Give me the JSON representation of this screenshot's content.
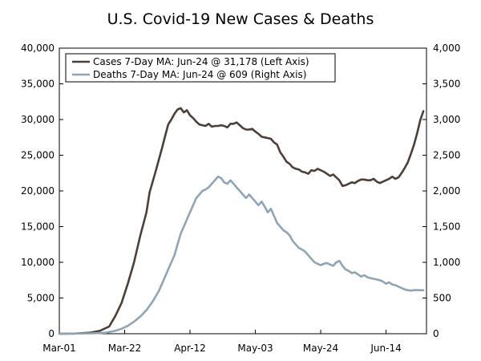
{
  "chart_data": {
    "type": "line",
    "title": "U.S. Covid-19 New Cases & Deaths",
    "x_labels": [
      "Mar-01",
      "Mar-22",
      "Apr-12",
      "May-03",
      "May-24",
      "Jun-14"
    ],
    "x_label_days": [
      0,
      21,
      42,
      63,
      84,
      105
    ],
    "x_range": [
      0,
      118
    ],
    "left_axis": {
      "range": [
        0,
        40000
      ],
      "ticks": [
        "0",
        "5,000",
        "10,000",
        "15,000",
        "20,000",
        "25,000",
        "30,000",
        "35,000",
        "40,000"
      ]
    },
    "right_axis": {
      "range": [
        0,
        4000
      ],
      "ticks": [
        "0",
        "500",
        "1,000",
        "1,500",
        "2,000",
        "2,500",
        "3,000",
        "3,500",
        "4,000"
      ]
    },
    "series": [
      {
        "name": "Cases 7-Day MA: Jun-24 @ 31,178 (Left Axis)",
        "axis": "left",
        "color": "#4d3f36",
        "points": [
          [
            0,
            0
          ],
          [
            5,
            20
          ],
          [
            10,
            150
          ],
          [
            13,
            400
          ],
          [
            16,
            1000
          ],
          [
            18,
            2500
          ],
          [
            20,
            4300
          ],
          [
            22,
            7000
          ],
          [
            24,
            10000
          ],
          [
            26,
            13700
          ],
          [
            28,
            17000
          ],
          [
            29,
            19800
          ],
          [
            31,
            22800
          ],
          [
            33,
            26000
          ],
          [
            34,
            27700
          ],
          [
            35,
            29300
          ],
          [
            36,
            30000
          ],
          [
            37,
            30800
          ],
          [
            38,
            31400
          ],
          [
            39,
            31600
          ],
          [
            40,
            31000
          ],
          [
            41,
            31300
          ],
          [
            42,
            30600
          ],
          [
            43,
            30200
          ],
          [
            44,
            29700
          ],
          [
            45,
            29300
          ],
          [
            46,
            29200
          ],
          [
            47,
            29100
          ],
          [
            48,
            29400
          ],
          [
            49,
            29000
          ],
          [
            50,
            29100
          ],
          [
            51,
            29100
          ],
          [
            52,
            29200
          ],
          [
            53,
            29100
          ],
          [
            54,
            28900
          ],
          [
            55,
            29400
          ],
          [
            56,
            29400
          ],
          [
            57,
            29600
          ],
          [
            58,
            29200
          ],
          [
            59,
            28800
          ],
          [
            60,
            28600
          ],
          [
            61,
            28600
          ],
          [
            62,
            28700
          ],
          [
            63,
            28300
          ],
          [
            64,
            28000
          ],
          [
            65,
            27600
          ],
          [
            66,
            27500
          ],
          [
            67,
            27400
          ],
          [
            68,
            27300
          ],
          [
            69,
            26800
          ],
          [
            70,
            26500
          ],
          [
            71,
            25400
          ],
          [
            72,
            24800
          ],
          [
            73,
            24100
          ],
          [
            74,
            23800
          ],
          [
            75,
            23300
          ],
          [
            76,
            23100
          ],
          [
            77,
            23000
          ],
          [
            78,
            22700
          ],
          [
            79,
            22600
          ],
          [
            80,
            22400
          ],
          [
            81,
            22900
          ],
          [
            82,
            22800
          ],
          [
            83,
            23100
          ],
          [
            84,
            22900
          ],
          [
            85,
            22700
          ],
          [
            86,
            22400
          ],
          [
            87,
            22100
          ],
          [
            88,
            22300
          ],
          [
            89,
            21900
          ],
          [
            90,
            21500
          ],
          [
            91,
            20700
          ],
          [
            92,
            20800
          ],
          [
            93,
            21000
          ],
          [
            94,
            21200
          ],
          [
            95,
            21100
          ],
          [
            96,
            21400
          ],
          [
            97,
            21600
          ],
          [
            98,
            21600
          ],
          [
            99,
            21500
          ],
          [
            100,
            21500
          ],
          [
            101,
            21700
          ],
          [
            102,
            21300
          ],
          [
            103,
            21100
          ],
          [
            104,
            21300
          ],
          [
            105,
            21500
          ],
          [
            106,
            21700
          ],
          [
            107,
            22000
          ],
          [
            108,
            21700
          ],
          [
            109,
            21900
          ],
          [
            110,
            22500
          ],
          [
            111,
            23200
          ],
          [
            112,
            24000
          ],
          [
            113,
            25200
          ],
          [
            114,
            26500
          ],
          [
            115,
            28100
          ],
          [
            116,
            29900
          ],
          [
            117,
            31178
          ]
        ]
      },
      {
        "name": "Deaths 7-Day MA: Jun-24 @ 609 (Right Axis)",
        "axis": "right",
        "color": "#8ea5b6",
        "points": [
          [
            0,
            0
          ],
          [
            10,
            5
          ],
          [
            15,
            15
          ],
          [
            18,
            40
          ],
          [
            20,
            70
          ],
          [
            22,
            110
          ],
          [
            24,
            170
          ],
          [
            26,
            240
          ],
          [
            28,
            330
          ],
          [
            30,
            450
          ],
          [
            32,
            600
          ],
          [
            33,
            700
          ],
          [
            34,
            800
          ],
          [
            35,
            900
          ],
          [
            36,
            1000
          ],
          [
            37,
            1100
          ],
          [
            38,
            1250
          ],
          [
            39,
            1400
          ],
          [
            40,
            1500
          ],
          [
            41,
            1600
          ],
          [
            42,
            1700
          ],
          [
            43,
            1800
          ],
          [
            44,
            1900
          ],
          [
            45,
            1950
          ],
          [
            46,
            2000
          ],
          [
            47,
            2020
          ],
          [
            48,
            2050
          ],
          [
            49,
            2100
          ],
          [
            50,
            2150
          ],
          [
            51,
            2200
          ],
          [
            52,
            2180
          ],
          [
            53,
            2120
          ],
          [
            54,
            2100
          ],
          [
            55,
            2150
          ],
          [
            56,
            2100
          ],
          [
            57,
            2050
          ],
          [
            58,
            2000
          ],
          [
            59,
            1950
          ],
          [
            60,
            1900
          ],
          [
            61,
            1950
          ],
          [
            62,
            1900
          ],
          [
            63,
            1850
          ],
          [
            64,
            1800
          ],
          [
            65,
            1850
          ],
          [
            66,
            1780
          ],
          [
            67,
            1700
          ],
          [
            68,
            1750
          ],
          [
            69,
            1650
          ],
          [
            70,
            1550
          ],
          [
            71,
            1500
          ],
          [
            72,
            1450
          ],
          [
            73,
            1420
          ],
          [
            74,
            1380
          ],
          [
            75,
            1300
          ],
          [
            76,
            1250
          ],
          [
            77,
            1200
          ],
          [
            78,
            1180
          ],
          [
            79,
            1150
          ],
          [
            80,
            1100
          ],
          [
            81,
            1050
          ],
          [
            82,
            1000
          ],
          [
            83,
            980
          ],
          [
            84,
            960
          ],
          [
            85,
            980
          ],
          [
            86,
            990
          ],
          [
            87,
            970
          ],
          [
            88,
            950
          ],
          [
            89,
            1000
          ],
          [
            90,
            1020
          ],
          [
            91,
            950
          ],
          [
            92,
            900
          ],
          [
            93,
            880
          ],
          [
            94,
            850
          ],
          [
            95,
            860
          ],
          [
            96,
            830
          ],
          [
            97,
            800
          ],
          [
            98,
            820
          ],
          [
            99,
            790
          ],
          [
            100,
            780
          ],
          [
            101,
            770
          ],
          [
            102,
            760
          ],
          [
            103,
            750
          ],
          [
            104,
            730
          ],
          [
            105,
            700
          ],
          [
            106,
            720
          ],
          [
            107,
            690
          ],
          [
            108,
            680
          ],
          [
            109,
            660
          ],
          [
            110,
            640
          ],
          [
            111,
            620
          ],
          [
            112,
            610
          ],
          [
            113,
            605
          ],
          [
            114,
            610
          ],
          [
            115,
            612
          ],
          [
            116,
            609
          ],
          [
            117,
            609
          ]
        ]
      }
    ],
    "legend_position": "top-left",
    "grid": false
  }
}
